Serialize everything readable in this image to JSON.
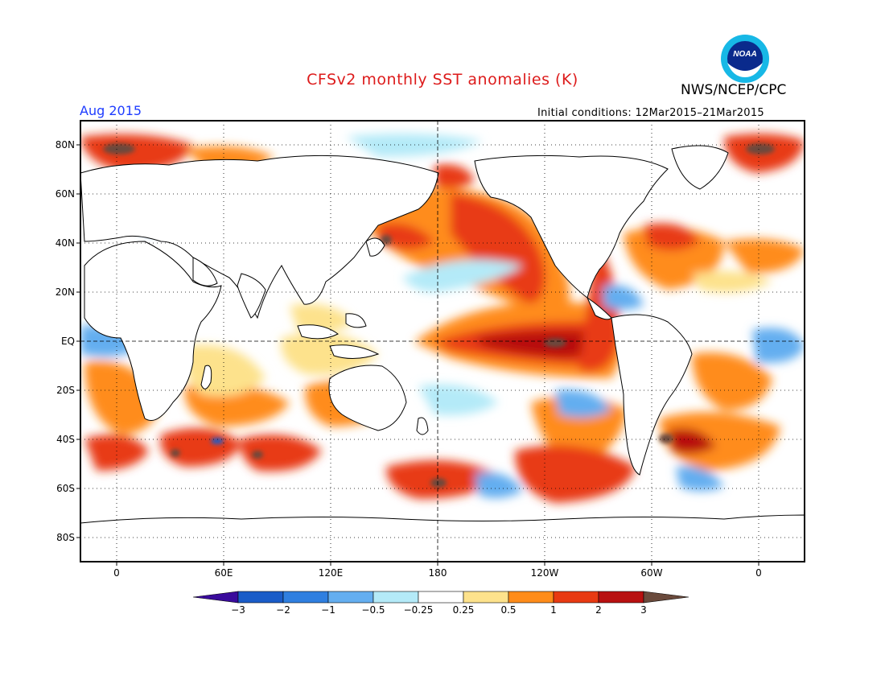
{
  "title": "CFSv2 monthly SST anomalies (K)",
  "organization": "NWS/NCEP/CPC",
  "logo_text": "NOAA",
  "target_period": "Aug 2015",
  "initial_conditions": "Initial conditions: 12Mar2015–21Mar2015",
  "colors": {
    "title": "#dd1b1b",
    "period": "#1e3cff",
    "land": "#ffffff",
    "coast": "#000000"
  },
  "map": {
    "projection": "cylindrical equidistant",
    "lon_range": "20W to 20E (wrapping, centered 180)",
    "lat_labels": [
      "80N",
      "60N",
      "40N",
      "20N",
      "EQ",
      "20S",
      "40S",
      "60S",
      "80S"
    ],
    "lon_labels": [
      "0",
      "60E",
      "120E",
      "180",
      "120W",
      "60W",
      "0"
    ],
    "reference_lines": [
      "equator dashed",
      "180 meridian dashed"
    ]
  },
  "colorbar": {
    "tick_labels": [
      "−3",
      "−2",
      "−1",
      "−0.5",
      "−0.25",
      "0.25",
      "0.5",
      "1",
      "2",
      "3"
    ],
    "bins": [
      {
        "range": "< -3",
        "color": "#3a0b9c"
      },
      {
        "range": "-3 to -2",
        "color": "#1a5cc8"
      },
      {
        "range": "-2 to -1",
        "color": "#2f7fe0"
      },
      {
        "range": "-1 to -0.5",
        "color": "#64aef0"
      },
      {
        "range": "-0.5 to -0.25",
        "color": "#b4eaf8"
      },
      {
        "range": "-0.25 to 0.25",
        "color": "#ffffff"
      },
      {
        "range": "0.25 to 0.5",
        "color": "#fde28c"
      },
      {
        "range": "0.5 to 1",
        "color": "#ff8c1a"
      },
      {
        "range": "1 to 2",
        "color": "#e83a12"
      },
      {
        "range": "2 to 3",
        "color": "#b81010"
      },
      {
        "range": "> 3",
        "color": "#6a4a3c"
      }
    ]
  }
}
